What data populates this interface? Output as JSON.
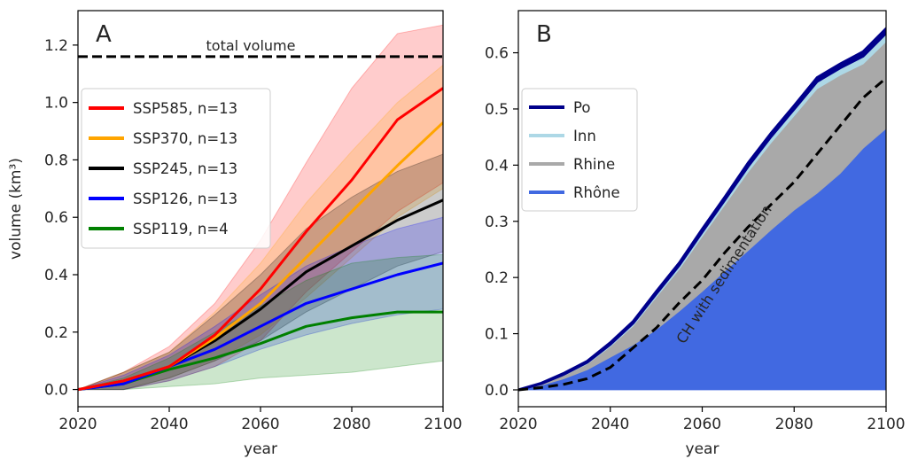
{
  "chart_data": [
    {
      "type": "line",
      "panel_label": "A",
      "xlabel": "year",
      "ylabel": "volume (km³)",
      "xlim": [
        2020,
        2100
      ],
      "ylim": [
        -0.06,
        1.32
      ],
      "xticks": [
        2020,
        2040,
        2060,
        2080,
        2100
      ],
      "yticks": [
        "0.0",
        "0.2",
        "0.4",
        "0.6",
        "0.8",
        "1.0",
        "1.2"
      ],
      "grid": false,
      "legend_position": "upper-left",
      "reference_line": {
        "label": "total volume",
        "y": 1.16,
        "style": "dashed",
        "color": "#000000"
      },
      "x": [
        2020,
        2030,
        2040,
        2050,
        2060,
        2070,
        2080,
        2090,
        2100
      ],
      "series": [
        {
          "name": "SSP585, n=13",
          "color": "#ff0000",
          "values": [
            0.0,
            0.03,
            0.08,
            0.19,
            0.35,
            0.55,
            0.73,
            0.94,
            1.05
          ],
          "lower": [
            0.0,
            0.0,
            0.03,
            0.08,
            0.17,
            0.34,
            0.48,
            0.62,
            0.72
          ],
          "upper": [
            0.0,
            0.06,
            0.15,
            0.3,
            0.52,
            0.79,
            1.05,
            1.24,
            1.27
          ]
        },
        {
          "name": "SSP370, n=13",
          "color": "#ffa500",
          "values": [
            0.0,
            0.03,
            0.08,
            0.18,
            0.3,
            0.46,
            0.62,
            0.78,
            0.93
          ],
          "lower": [
            0.0,
            0.0,
            0.04,
            0.1,
            0.19,
            0.32,
            0.46,
            0.6,
            0.7
          ],
          "upper": [
            0.0,
            0.06,
            0.13,
            0.27,
            0.44,
            0.65,
            0.83,
            1.0,
            1.13
          ]
        },
        {
          "name": "SSP245, n=13",
          "color": "#000000",
          "values": [
            0.0,
            0.03,
            0.08,
            0.17,
            0.28,
            0.41,
            0.5,
            0.59,
            0.66
          ],
          "lower": [
            0.0,
            0.0,
            0.04,
            0.1,
            0.17,
            0.27,
            0.35,
            0.43,
            0.48
          ],
          "upper": [
            0.0,
            0.06,
            0.13,
            0.26,
            0.4,
            0.56,
            0.67,
            0.76,
            0.82
          ]
        },
        {
          "name": "SSP126, n=13",
          "color": "#0000ff",
          "values": [
            0.0,
            0.02,
            0.08,
            0.14,
            0.22,
            0.3,
            0.35,
            0.4,
            0.44
          ],
          "lower": [
            0.0,
            0.0,
            0.03,
            0.08,
            0.14,
            0.19,
            0.23,
            0.26,
            0.28
          ],
          "upper": [
            0.0,
            0.05,
            0.12,
            0.22,
            0.33,
            0.43,
            0.5,
            0.56,
            0.6
          ]
        },
        {
          "name": "SSP119, n=4",
          "color": "#008000",
          "values": [
            0.0,
            0.02,
            0.07,
            0.11,
            0.16,
            0.22,
            0.25,
            0.27,
            0.27
          ],
          "lower": [
            0.0,
            0.0,
            0.01,
            0.02,
            0.04,
            0.05,
            0.06,
            0.08,
            0.1
          ],
          "upper": [
            0.0,
            0.04,
            0.11,
            0.2,
            0.29,
            0.38,
            0.44,
            0.46,
            0.47
          ]
        }
      ]
    },
    {
      "type": "area",
      "stacked": true,
      "panel_label": "B",
      "xlabel": "year",
      "ylabel": "",
      "xlim": [
        2020,
        2100
      ],
      "ylim": [
        -0.03,
        0.675
      ],
      "xticks": [
        2020,
        2040,
        2060,
        2080,
        2100
      ],
      "yticks": [
        "0.0",
        "0.1",
        "0.2",
        "0.3",
        "0.4",
        "0.5",
        "0.6"
      ],
      "grid": false,
      "legend_position": "upper-left",
      "x": [
        2020,
        2025,
        2030,
        2035,
        2040,
        2045,
        2050,
        2055,
        2060,
        2065,
        2070,
        2075,
        2080,
        2085,
        2090,
        2095,
        2100
      ],
      "series": [
        {
          "name": "Rhône",
          "color": "#4169e1",
          "values": [
            0.0,
            0.008,
            0.02,
            0.036,
            0.058,
            0.08,
            0.107,
            0.14,
            0.175,
            0.212,
            0.248,
            0.285,
            0.32,
            0.35,
            0.385,
            0.43,
            0.465
          ]
        },
        {
          "name": "Rhine",
          "color": "#a9a9a9",
          "values": [
            0.0,
            0.002,
            0.006,
            0.01,
            0.019,
            0.034,
            0.058,
            0.075,
            0.098,
            0.118,
            0.14,
            0.155,
            0.168,
            0.186,
            0.175,
            0.15,
            0.155
          ]
        },
        {
          "name": "Inn",
          "color": "#add8e6",
          "values": [
            0.0,
            0.001,
            0.002,
            0.003,
            0.004,
            0.005,
            0.006,
            0.007,
            0.008,
            0.009,
            0.01,
            0.011,
            0.012,
            0.013,
            0.013,
            0.014,
            0.015
          ]
        },
        {
          "name": "Po",
          "color": "#00008b",
          "values": [
            0.0,
            0.001,
            0.002,
            0.002,
            0.003,
            0.003,
            0.004,
            0.004,
            0.005,
            0.005,
            0.006,
            0.006,
            0.006,
            0.007,
            0.007,
            0.008,
            0.008
          ]
        }
      ],
      "legend_order": [
        "Po",
        "Inn",
        "Rhine",
        "Rhône"
      ],
      "dashed_line": {
        "label": "CH with sedimentation",
        "color": "#000000",
        "values": [
          0.0,
          0.004,
          0.01,
          0.02,
          0.04,
          0.075,
          0.11,
          0.155,
          0.195,
          0.245,
          0.29,
          0.33,
          0.37,
          0.42,
          0.47,
          0.52,
          0.555
        ]
      }
    }
  ]
}
